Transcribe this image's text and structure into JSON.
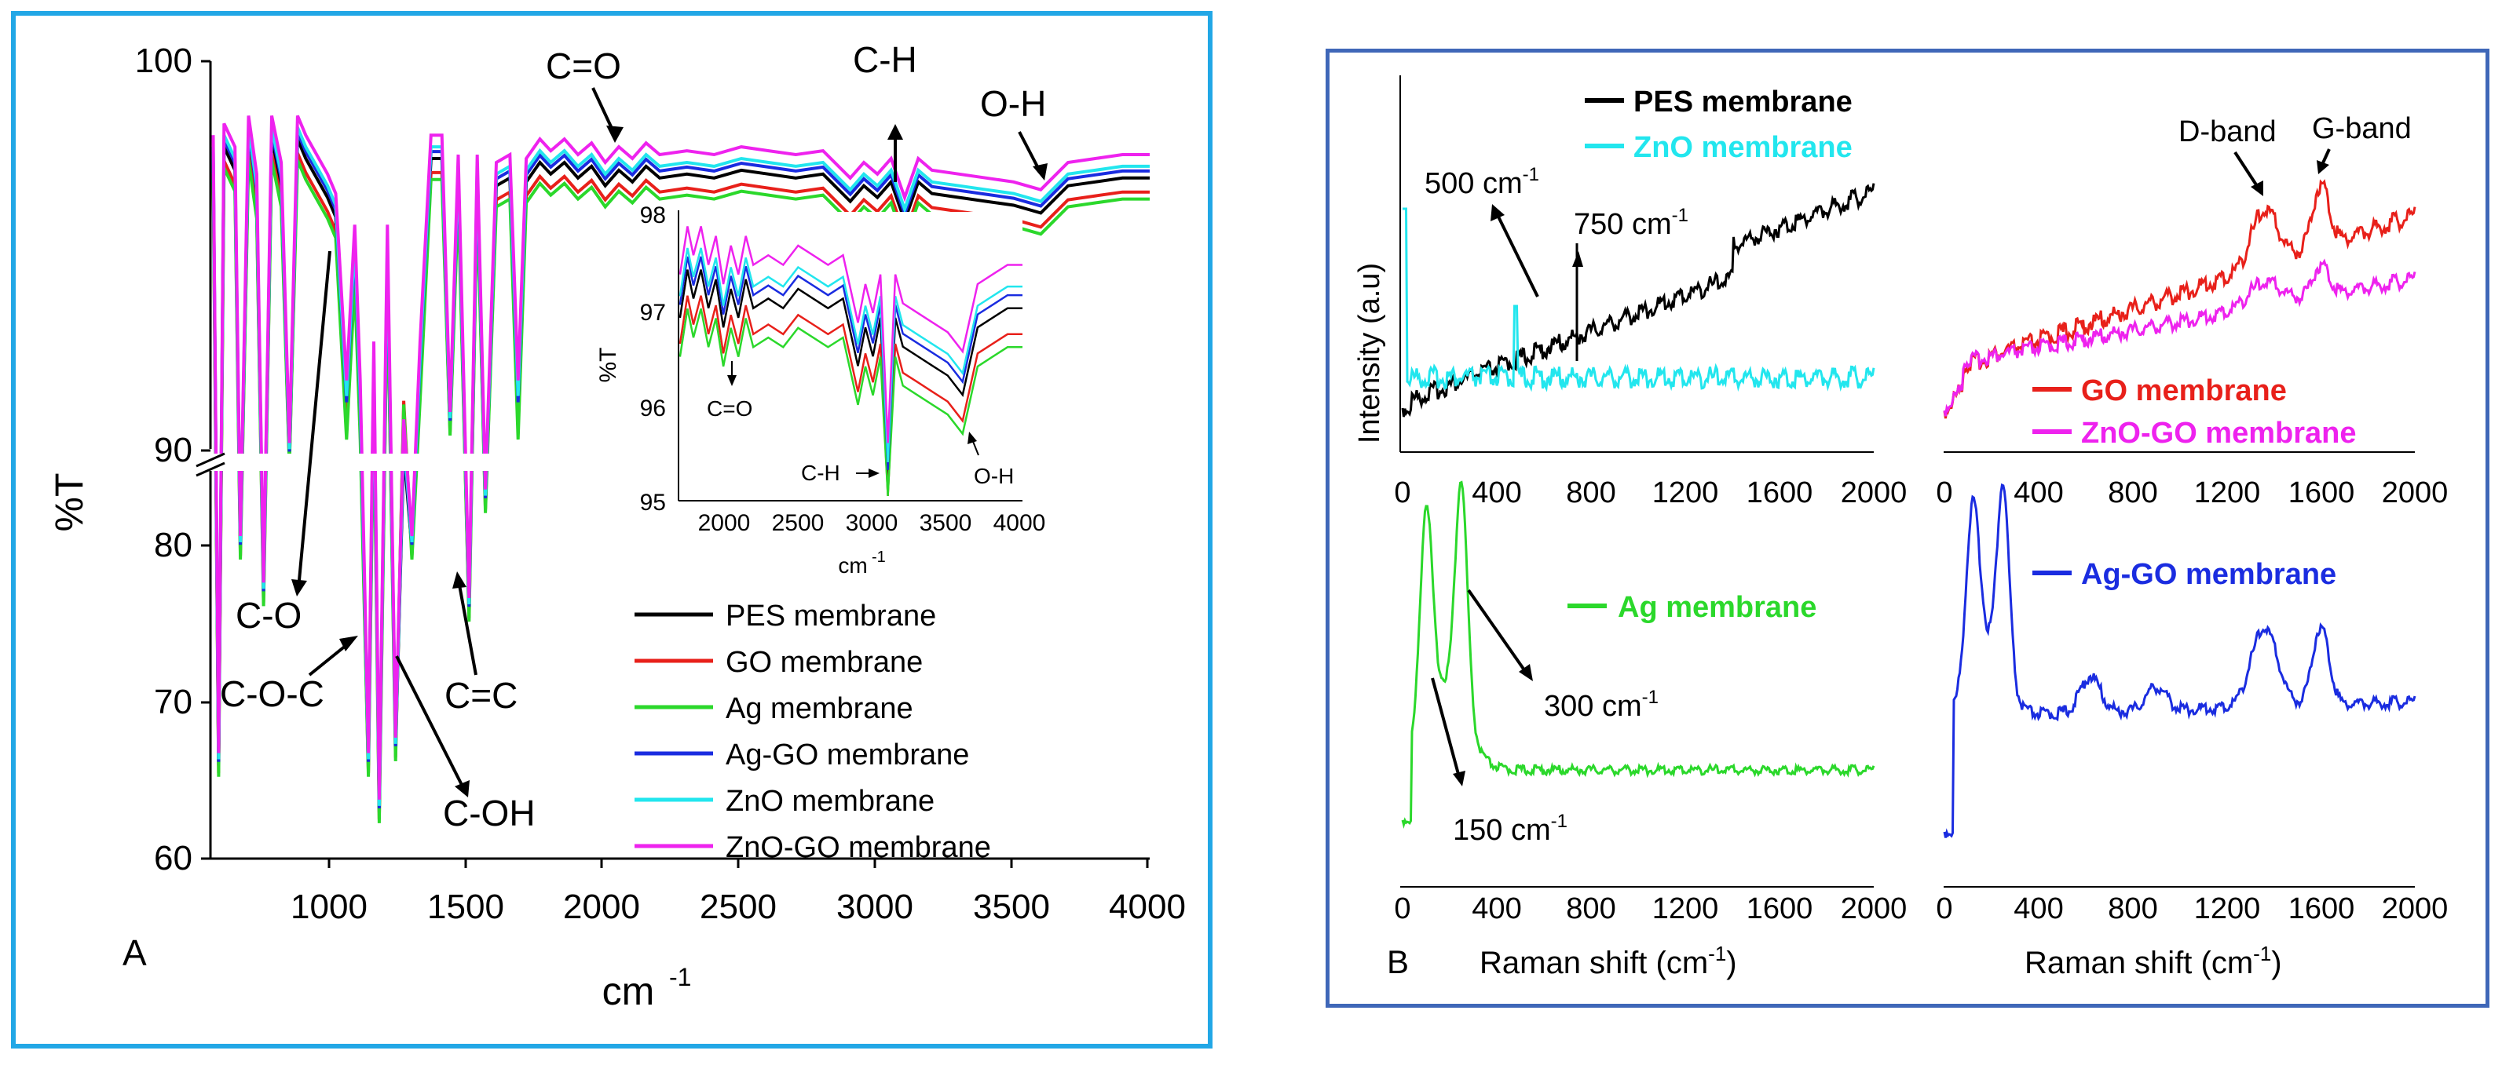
{
  "chart_data": [
    {
      "panel": "A",
      "type": "line",
      "title": "",
      "xlabel": "cm-1",
      "ylabel": "%T",
      "xlim": [
        550,
        4000
      ],
      "ylim": [
        60,
        100
      ],
      "y_break": [
        85,
        90
      ],
      "x_ticks": [
        "1000",
        "1500",
        "2000",
        "2500",
        "3000",
        "3500",
        "4000"
      ],
      "y_ticks": [
        "60",
        "70",
        "80",
        "90",
        "100"
      ],
      "legend": [
        {
          "name": "PES membrane",
          "color": "#000000"
        },
        {
          "name": "GO membrane",
          "color": "#e8201a"
        },
        {
          "name": "Ag membrane",
          "color": "#2bd82b"
        },
        {
          "name": "Ag-GO membrane",
          "color": "#1a2ce0"
        },
        {
          "name": "ZnO membrane",
          "color": "#22e6ee"
        },
        {
          "name": "ZnO-GO membrane",
          "color": "#ee22ee"
        }
      ],
      "series_offsets": {
        "PES membrane": 0.0,
        "GO membrane": -0.6,
        "Ag membrane": -0.9,
        "Ag-GO membrane": 0.3,
        "ZnO membrane": 0.5,
        "ZnO-GO membrane": 1.0
      },
      "base_points": [
        [
          560,
          97.5
        ],
        [
          580,
          66
        ],
        [
          600,
          97.8
        ],
        [
          640,
          97.2
        ],
        [
          660,
          80
        ],
        [
          690,
          98
        ],
        [
          720,
          96.5
        ],
        [
          745,
          77
        ],
        [
          775,
          98
        ],
        [
          810,
          96.8
        ],
        [
          840,
          86
        ],
        [
          870,
          98
        ],
        [
          900,
          97.5
        ],
        [
          940,
          97
        ],
        [
          980,
          96.5
        ],
        [
          1010,
          96
        ],
        [
          1050,
          91
        ],
        [
          1080,
          95
        ],
        [
          1100,
          91
        ],
        [
          1130,
          66
        ],
        [
          1150,
          92
        ],
        [
          1170,
          63
        ],
        [
          1200,
          95
        ],
        [
          1230,
          67
        ],
        [
          1260,
          90
        ],
        [
          1290,
          80
        ],
        [
          1320,
          92
        ],
        [
          1360,
          97.5
        ],
        [
          1400,
          97.5
        ],
        [
          1430,
          88
        ],
        [
          1460,
          97
        ],
        [
          1500,
          76
        ],
        [
          1530,
          97
        ],
        [
          1560,
          83
        ],
        [
          1600,
          96.8
        ],
        [
          1650,
          97
        ],
        [
          1680,
          91
        ],
        [
          1710,
          96.9
        ],
        [
          1760,
          97.4
        ],
        [
          1800,
          97.1
        ],
        [
          1850,
          97.4
        ],
        [
          1900,
          97.0
        ],
        [
          1950,
          97.3
        ],
        [
          2000,
          96.8
        ],
        [
          2050,
          97.2
        ],
        [
          2100,
          96.9
        ],
        [
          2150,
          97.3
        ],
        [
          2200,
          97.0
        ],
        [
          2300,
          97.1
        ],
        [
          2400,
          97.0
        ],
        [
          2500,
          97.2
        ],
        [
          2600,
          97.1
        ],
        [
          2700,
          97.0
        ],
        [
          2800,
          97.1
        ],
        [
          2900,
          96.4
        ],
        [
          2950,
          96.8
        ],
        [
          3000,
          96.5
        ],
        [
          3050,
          96.9
        ],
        [
          3100,
          95.9
        ],
        [
          3150,
          96.9
        ],
        [
          3200,
          96.6
        ],
        [
          3300,
          96.5
        ],
        [
          3400,
          96.4
        ],
        [
          3500,
          96.3
        ],
        [
          3600,
          96.1
        ],
        [
          3700,
          96.8
        ],
        [
          3800,
          96.9
        ],
        [
          3900,
          97.0
        ],
        [
          4000,
          97.0
        ]
      ],
      "annotations": [
        {
          "text": "C=O",
          "at": [
            2050,
            97.3
          ]
        },
        {
          "text": "C-H",
          "at": [
            3100,
            96.2
          ]
        },
        {
          "text": "O-H",
          "at": [
            3650,
            96.8
          ]
        },
        {
          "text": "C-O",
          "at": [
            1000,
            95
          ]
        },
        {
          "text": "C-O-C",
          "at": [
            1100,
            77
          ]
        },
        {
          "text": "C-OH",
          "at": [
            1220,
            73
          ]
        },
        {
          "text": "C=C",
          "at": [
            1500,
            79
          ]
        }
      ],
      "inset": {
        "xlim": [
          1700,
          4000
        ],
        "ylim": [
          95,
          98
        ],
        "x_ticks": [
          "2000",
          "2500",
          "3000",
          "3500",
          "4000"
        ],
        "y_ticks": [
          "95",
          "96",
          "97",
          "98"
        ],
        "xlabel": "cm-1",
        "ylabel": "%T",
        "annotations": [
          "C=O",
          "C-H",
          "O-H"
        ]
      },
      "panel_label": "A"
    },
    {
      "panel": "B",
      "type": "line",
      "xlabel": "Raman shift (cm-1)",
      "ylabel": "Intensity (a.u)",
      "x_ticks": [
        "0",
        "400",
        "800",
        "1200",
        "1600",
        "2000"
      ],
      "subplots": [
        {
          "legend": [
            "PES membrane",
            "ZnO membrane"
          ],
          "annotations": [
            "500 cm-1",
            "750 cm-1"
          ]
        },
        {
          "legend": [
            "GO membrane",
            "ZnO-GO membrane"
          ],
          "annotations": [
            "D-band",
            "G-band"
          ]
        },
        {
          "legend": [
            "Ag membrane"
          ],
          "annotations": [
            "300 cm-1",
            "150 cm-1"
          ]
        },
        {
          "legend": [
            "Ag-GO membrane"
          ],
          "annotations": []
        }
      ],
      "panel_label": "B"
    }
  ],
  "panelA": {
    "label": "A",
    "y_axis_label": "%T",
    "x_axis_label": "cm",
    "x_axis_sup": "-1",
    "y_ticks": [
      "100",
      "90",
      "80",
      "70",
      "60"
    ],
    "x_ticks": [
      "1000",
      "1500",
      "2000",
      "2500",
      "3000",
      "3500",
      "4000"
    ],
    "ann": {
      "co_double": "C=O",
      "ch": "C-H",
      "oh": "O-H",
      "co": "C-O",
      "coc": "C-O-C",
      "coh": "C-OH",
      "cc": "C=C"
    },
    "legend": [
      "PES membrane",
      "GO membrane",
      "Ag membrane",
      "Ag-GO membrane",
      "ZnO membrane",
      "ZnO-GO membrane"
    ],
    "inset": {
      "y_ticks": [
        "98",
        "97",
        "96",
        "95"
      ],
      "x_ticks": [
        "2000",
        "2500",
        "3000",
        "3500",
        "4000"
      ],
      "ylabel": "%T",
      "xlabel": "cm",
      "xlabel_sup": "-1",
      "ann": {
        "co": "C=O",
        "ch": "C-H",
        "oh": "O-H"
      }
    }
  },
  "panelB": {
    "label": "B",
    "y_axis_label": "Intensity (a.u)",
    "x_label_left": "Raman shift (cm",
    "x_label_sup": "-1",
    "x_label_close": ")",
    "x_ticks": [
      "0",
      "400",
      "800",
      "1200",
      "1600",
      "2000"
    ],
    "tl": {
      "legend1": "PES membrane",
      "legend2": "ZnO membrane",
      "ann1": "500 cm",
      "ann2": "750 cm",
      "sup": "-1"
    },
    "tr": {
      "legend1": "GO membrane",
      "legend2": "ZnO-GO membrane",
      "ann1": "D-band",
      "ann2": "G-band"
    },
    "bl": {
      "legend1": "Ag membrane",
      "ann1": "300 cm",
      "ann2": "150 cm",
      "sup": "-1"
    },
    "br": {
      "legend1": "Ag-GO membrane"
    }
  },
  "colors": {
    "black": "#000000",
    "red": "#e8201a",
    "green": "#2bd82b",
    "blue": "#1a2ce0",
    "cyan": "#22e6ee",
    "magenta": "#ee22ee",
    "frameA": "#22a7e6",
    "frameB": "#3f67b8"
  }
}
